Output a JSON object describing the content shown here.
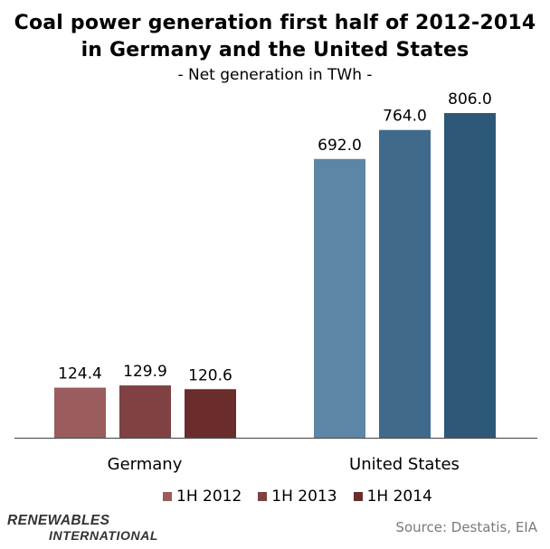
{
  "chart_data": {
    "type": "bar",
    "title_lines": [
      "Coal power generation first half of 2012-2014",
      "in Germany and the United States"
    ],
    "subtitle": "- Net generation in TWh -",
    "categories": [
      "Germany",
      "United States"
    ],
    "series": [
      {
        "name": "1H 2012",
        "values": [
          124.4,
          692.0
        ],
        "labels": [
          "124.4",
          "692.0"
        ]
      },
      {
        "name": "1H 2013",
        "values": [
          129.9,
          764.0
        ],
        "labels": [
          "129.9",
          "764.0"
        ]
      },
      {
        "name": "1H 2014",
        "values": [
          120.6,
          806.0
        ],
        "labels": [
          "120.6",
          "806.0"
        ]
      }
    ],
    "xlabel": "",
    "ylabel": "",
    "ylim": [
      0,
      806
    ],
    "grid": false,
    "legend_position": "bottom"
  },
  "colors": {
    "Germany": [
      "#9a5c5c",
      "#7f4141",
      "#6b2c2c"
    ],
    "United States": [
      "#5b86a6",
      "#406a8c",
      "#2e5877"
    ],
    "legend": [
      "#9a5c5c",
      "#7f4141",
      "#6b2c2c"
    ],
    "axis": "#555555"
  },
  "branding": {
    "line1": "RENEWABLES",
    "line2": "INTERNATIONAL"
  },
  "source": "Source: Destatis, EIA"
}
